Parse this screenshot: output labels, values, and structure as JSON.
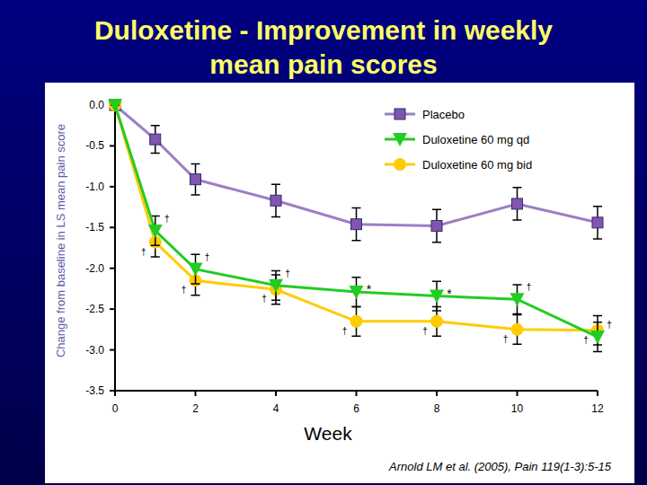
{
  "chart_data": {
    "type": "line",
    "title": "Duloxetine - Improvement in weekly mean pain scores",
    "y_label": "Change from baseline in LS mean pain score",
    "x_label": "Week",
    "source": "Arnold LM et al. (2005), Pain 119(1-3):5-15",
    "x": [
      0,
      1,
      2,
      4,
      6,
      8,
      10,
      12
    ],
    "xlim": [
      0,
      12
    ],
    "xticks": [
      0,
      2,
      4,
      6,
      8,
      10,
      12
    ],
    "ylim": [
      -3.5,
      0
    ],
    "yticks": [
      {
        "value": 0,
        "label": "0.0"
      },
      -0.5,
      {
        "value": -1,
        "label": "-1.0"
      },
      -1.5,
      {
        "value": -2,
        "label": "-2.0"
      },
      -2.5,
      {
        "value": -3,
        "label": "-3.0"
      },
      -3.5
    ],
    "grid": false,
    "legend": "upper right",
    "series": [
      {
        "name": "Placebo",
        "color": "#7f56b0",
        "marker": "square",
        "values": [
          0,
          -0.42,
          -0.91,
          -1.17,
          -1.46,
          -1.48,
          -1.21,
          -1.44
        ],
        "errors": [
          0,
          0.17,
          0.19,
          0.2,
          0.2,
          0.2,
          0.2,
          0.2
        ]
      },
      {
        "name": "Duloxetine 60 mg qd",
        "color": "#22cc22",
        "marker": "triangle",
        "values": [
          0,
          -1.54,
          -2.01,
          -2.21,
          -2.29,
          -2.34,
          -2.38,
          -2.84
        ],
        "errors": [
          0,
          0.18,
          0.18,
          0.18,
          0.18,
          0.18,
          0.18,
          0.18
        ],
        "significance": [
          null,
          "†",
          "†",
          "†",
          "*",
          "*",
          "†",
          "†"
        ]
      },
      {
        "name": "Duloxetine 60 mg bid",
        "color": "#ffcc00",
        "marker": "circle",
        "values": [
          0,
          -1.68,
          -2.15,
          -2.26,
          -2.65,
          -2.65,
          -2.75,
          -2.76
        ],
        "errors": [
          0,
          0.18,
          0.18,
          0.18,
          0.18,
          0.18,
          0.18,
          0.18
        ],
        "significance": [
          null,
          "†",
          "†",
          "†",
          "†",
          "†",
          "†",
          "†"
        ]
      }
    ]
  }
}
